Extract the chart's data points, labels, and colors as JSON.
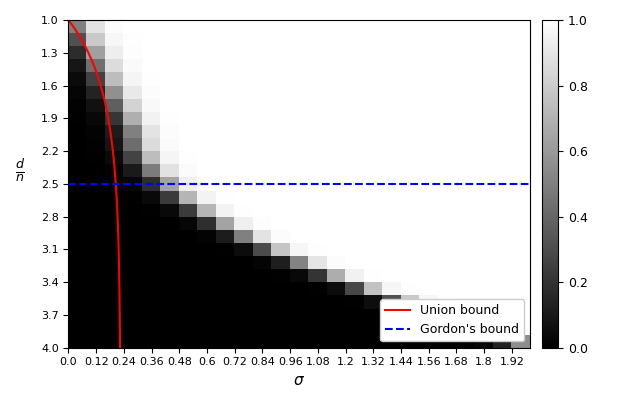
{
  "xlabel": "$\\sigma$",
  "ylabel": "$\\frac{d}{n}$",
  "sigma_min": 0.0,
  "sigma_max": 2.0,
  "sigma_ticks": [
    0.0,
    0.12,
    0.24,
    0.36,
    0.48,
    0.6,
    0.72,
    0.84,
    0.96,
    1.08,
    1.2,
    1.32,
    1.44,
    1.56,
    1.68,
    1.8,
    1.92
  ],
  "dn_min": 1.0,
  "dn_max": 4.0,
  "dn_ticks": [
    1.0,
    1.3,
    1.6,
    1.9,
    2.2,
    2.5,
    2.8,
    3.1,
    3.4,
    3.7,
    4.0
  ],
  "gordon_bound": 2.5,
  "colorbar_ticks": [
    0.0,
    0.2,
    0.4,
    0.6,
    0.8,
    1.0
  ],
  "union_bound_color": "#ff0000",
  "gordon_bound_color": "#0000ff",
  "n_sigma": 25,
  "n_dn": 25,
  "legend_loc": "lower right",
  "union_bound_c": 0.105,
  "union_bound_alpha": 0.5,
  "heatmap_scale": 3.5
}
